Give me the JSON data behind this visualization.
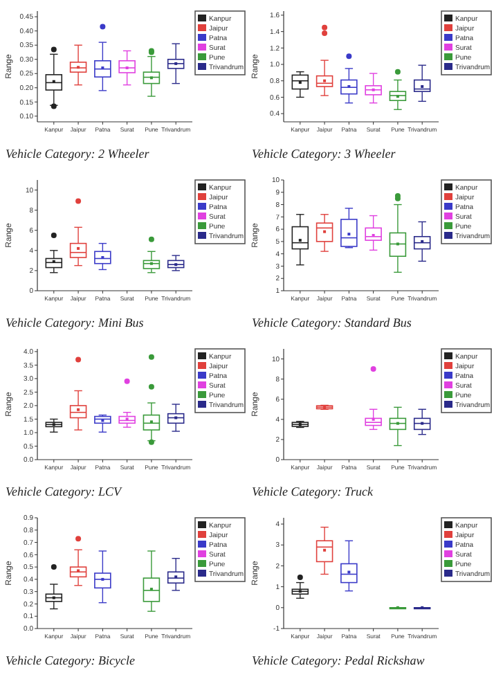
{
  "chart_data": [
    {
      "type": "box",
      "title": "Vehicle Category: 2 Wheeler",
      "ylabel": "Range",
      "categories": [
        "Kanpur",
        "Jaipur",
        "Patna",
        "Surat",
        "Pune",
        "Trivandrum"
      ],
      "ylim": [
        0.08,
        0.47
      ],
      "yticks": [
        {
          "value": 0.1,
          "label": "0.10"
        },
        {
          "value": 0.15,
          "label": "0.15"
        },
        {
          "value": 0.2,
          "label": "0.20"
        },
        {
          "value": 0.25,
          "label": "0.25"
        },
        {
          "value": 0.3,
          "label": "0.30"
        },
        {
          "value": 0.35,
          "label": "0.35"
        },
        {
          "value": 0.4,
          "label": "0.40"
        },
        {
          "value": 0.45,
          "label": "0.45"
        }
      ],
      "legend": "top right",
      "series": [
        {
          "name": "Kanpur",
          "color": "#222222",
          "boxes": [
            {
              "low": 0.138,
              "q1": 0.192,
              "median": 0.218,
              "q3": 0.246,
              "high": 0.318,
              "mean": 0.222,
              "outliers": [
                0.335,
                0.135
              ]
            },
            null,
            null,
            null,
            null,
            null
          ]
        },
        {
          "name": "Jaipur",
          "color": "#e0403c",
          "boxes": [
            null,
            {
              "low": 0.21,
              "q1": 0.255,
              "median": 0.27,
              "q3": 0.29,
              "high": 0.35,
              "mean": 0.272
            },
            null,
            null,
            null,
            null
          ]
        },
        {
          "name": "Patna",
          "color": "#3a3ac8",
          "boxes": [
            null,
            null,
            {
              "low": 0.19,
              "q1": 0.238,
              "median": 0.266,
              "q3": 0.295,
              "high": 0.36,
              "mean": 0.27,
              "outliers": [
                0.415
              ]
            },
            null,
            null,
            null
          ]
        },
        {
          "name": "Surat",
          "color": "#e040e0",
          "boxes": [
            null,
            null,
            null,
            {
              "low": 0.21,
              "q1": 0.253,
              "median": 0.27,
              "q3": 0.295,
              "high": 0.33,
              "mean": 0.27
            },
            null,
            null
          ]
        },
        {
          "name": "Pune",
          "color": "#3a9a3a",
          "boxes": [
            null,
            null,
            null,
            null,
            {
              "low": 0.17,
              "q1": 0.215,
              "median": 0.237,
              "q3": 0.255,
              "high": 0.31,
              "mean": 0.235,
              "outliers": [
                0.33,
                0.325
              ]
            },
            null
          ]
        },
        {
          "name": "Trivandrum",
          "color": "#2a2a8a",
          "boxes": [
            null,
            null,
            null,
            null,
            null,
            {
              "low": 0.215,
              "q1": 0.268,
              "median": 0.285,
              "q3": 0.3,
              "high": 0.355,
              "mean": 0.285
            }
          ]
        }
      ]
    },
    {
      "type": "box",
      "title": "Vehicle Category: 3 Wheeler",
      "ylabel": "Range",
      "categories": [
        "Kanpur",
        "Jaipur",
        "Patna",
        "Surat",
        "Pune",
        "Trivandrum"
      ],
      "ylim": [
        0.3,
        1.65
      ],
      "yticks": [
        0.4,
        0.6,
        0.8,
        {
          "value": 1,
          "label": "1.0"
        },
        1.2,
        1.4,
        1.6
      ],
      "legend": "top right",
      "series": [
        {
          "name": "Kanpur",
          "color": "#222222",
          "boxes": [
            {
              "low": 0.6,
              "q1": 0.7,
              "median": 0.8,
              "q3": 0.87,
              "high": 0.91,
              "mean": 0.78
            },
            null,
            null,
            null,
            null,
            null
          ]
        },
        {
          "name": "Jaipur",
          "color": "#e0403c",
          "boxes": [
            null,
            {
              "low": 0.62,
              "q1": 0.73,
              "median": 0.77,
              "q3": 0.86,
              "high": 1.05,
              "mean": 0.8,
              "outliers": [
                1.38,
                1.45
              ]
            },
            null,
            null,
            null,
            null
          ]
        },
        {
          "name": "Patna",
          "color": "#3a3ac8",
          "boxes": [
            null,
            null,
            {
              "low": 0.53,
              "q1": 0.64,
              "median": 0.72,
              "q3": 0.81,
              "high": 0.95,
              "mean": 0.73,
              "outliers": [
                1.1
              ]
            },
            null,
            null,
            null
          ]
        },
        {
          "name": "Surat",
          "color": "#e040e0",
          "boxes": [
            null,
            null,
            null,
            {
              "low": 0.53,
              "q1": 0.63,
              "median": 0.69,
              "q3": 0.74,
              "high": 0.89,
              "mean": 0.69
            },
            null,
            null
          ]
        },
        {
          "name": "Pune",
          "color": "#3a9a3a",
          "boxes": [
            null,
            null,
            null,
            null,
            {
              "low": 0.45,
              "q1": 0.56,
              "median": 0.62,
              "q3": 0.67,
              "high": 0.81,
              "mean": 0.61,
              "outliers": [
                0.91
              ]
            },
            null
          ]
        },
        {
          "name": "Trivandrum",
          "color": "#2a2a8a",
          "boxes": [
            null,
            null,
            null,
            null,
            null,
            {
              "low": 0.55,
              "q1": 0.67,
              "median": 0.7,
              "q3": 0.81,
              "high": 0.99,
              "mean": 0.73
            }
          ]
        }
      ]
    },
    {
      "type": "box",
      "title": "Vehicle Category: Mini Bus",
      "ylabel": "Range",
      "categories": [
        "Kanpur",
        "Jaipur",
        "Patna",
        "Surat",
        "Pune",
        "Trivandrum"
      ],
      "ylim": [
        0,
        11
      ],
      "yticks": [
        0,
        2,
        4,
        6,
        8,
        10
      ],
      "legend": "top right",
      "series": [
        {
          "name": "Kanpur",
          "color": "#222222",
          "boxes": [
            {
              "low": 1.8,
              "q1": 2.3,
              "median": 2.8,
              "q3": 3.2,
              "high": 4.0,
              "mean": 2.9,
              "outliers": [
                5.5
              ]
            },
            null,
            null,
            null,
            null,
            null
          ]
        },
        {
          "name": "Jaipur",
          "color": "#e0403c",
          "boxes": [
            null,
            {
              "low": 2.5,
              "q1": 3.3,
              "median": 3.8,
              "q3": 4.7,
              "high": 6.3,
              "mean": 4.2,
              "outliers": [
                8.9
              ]
            },
            null,
            null,
            null,
            null
          ]
        },
        {
          "name": "Patna",
          "color": "#3a3ac8",
          "boxes": [
            null,
            null,
            {
              "low": 2.1,
              "q1": 2.7,
              "median": 3.2,
              "q3": 3.9,
              "high": 4.7,
              "mean": 3.3
            },
            null,
            null,
            null
          ]
        },
        {
          "name": "Surat",
          "color": "#e040e0",
          "boxes": [
            null,
            null,
            null,
            null,
            null,
            null
          ]
        },
        {
          "name": "Pune",
          "color": "#3a9a3a",
          "boxes": [
            null,
            null,
            null,
            null,
            {
              "low": 1.8,
              "q1": 2.2,
              "median": 2.7,
              "q3": 3.0,
              "high": 3.9,
              "mean": 2.7,
              "outliers": [
                5.1
              ]
            },
            null
          ]
        },
        {
          "name": "Trivandrum",
          "color": "#2a2a8a",
          "boxes": [
            null,
            null,
            null,
            null,
            null,
            {
              "low": 2.0,
              "q1": 2.3,
              "median": 2.6,
              "q3": 3.0,
              "high": 3.5,
              "mean": 2.6
            }
          ]
        }
      ]
    },
    {
      "type": "box",
      "title": "Vehicle Category: Standard Bus",
      "ylabel": "Range",
      "categories": [
        "Kanpur",
        "Jaipur",
        "Patna",
        "Surat",
        "Pune",
        "Trivandrum"
      ],
      "ylim": [
        1,
        10
      ],
      "yticks": [
        1,
        2,
        3,
        4,
        5,
        6,
        7,
        8,
        9,
        10
      ],
      "legend": "top right",
      "series": [
        {
          "name": "Kanpur",
          "color": "#222222",
          "boxes": [
            {
              "low": 3.1,
              "q1": 4.4,
              "median": 4.9,
              "q3": 6.2,
              "high": 7.2,
              "mean": 5.1
            },
            null,
            null,
            null,
            null,
            null
          ]
        },
        {
          "name": "Jaipur",
          "color": "#e0403c",
          "boxes": [
            null,
            {
              "low": 4.2,
              "q1": 5.0,
              "median": 6.1,
              "q3": 6.5,
              "high": 7.2,
              "mean": 5.8
            },
            null,
            null,
            null,
            null
          ]
        },
        {
          "name": "Patna",
          "color": "#3a3ac8",
          "boxes": [
            null,
            null,
            {
              "low": 4.5,
              "q1": 4.6,
              "median": 5.3,
              "q3": 6.8,
              "high": 7.7,
              "mean": 5.6
            },
            null,
            null,
            null
          ]
        },
        {
          "name": "Surat",
          "color": "#e040e0",
          "boxes": [
            null,
            null,
            null,
            {
              "low": 4.3,
              "q1": 5.1,
              "median": 5.4,
              "q3": 6.1,
              "high": 7.1,
              "mean": 5.5
            },
            null,
            null
          ]
        },
        {
          "name": "Pune",
          "color": "#3a9a3a",
          "boxes": [
            null,
            null,
            null,
            null,
            {
              "low": 2.5,
              "q1": 3.8,
              "median": 4.8,
              "q3": 5.7,
              "high": 8.0,
              "mean": 4.8,
              "outliers": [
                8.5,
                8.7
              ]
            },
            null
          ]
        },
        {
          "name": "Trivandrum",
          "color": "#2a2a8a",
          "boxes": [
            null,
            null,
            null,
            null,
            null,
            {
              "low": 3.4,
              "q1": 4.4,
              "median": 4.9,
              "q3": 5.4,
              "high": 6.6,
              "mean": 5.0
            }
          ]
        }
      ]
    },
    {
      "type": "box",
      "title": "Vehicle Category: LCV",
      "ylabel": "Range",
      "categories": [
        "Kanpur",
        "Jaipur",
        "Patna",
        "Surat",
        "Pune",
        "Trivandrum"
      ],
      "ylim": [
        0,
        4.1
      ],
      "yticks": [
        {
          "value": 0,
          "label": "0.0"
        },
        {
          "value": 0.5,
          "label": "0.5"
        },
        {
          "value": 1,
          "label": "1.0"
        },
        {
          "value": 1.5,
          "label": "1.5"
        },
        {
          "value": 2,
          "label": "2.0"
        },
        {
          "value": 2.5,
          "label": "2.5"
        },
        {
          "value": 3,
          "label": "3.0"
        },
        {
          "value": 3.5,
          "label": "3.5"
        },
        {
          "value": 4,
          "label": "4.0"
        }
      ],
      "legend": "top right",
      "series": [
        {
          "name": "Kanpur",
          "color": "#222222",
          "boxes": [
            {
              "low": 1.02,
              "q1": 1.22,
              "median": 1.3,
              "q3": 1.38,
              "high": 1.5,
              "mean": 1.3
            },
            null,
            null,
            null,
            null,
            null
          ]
        },
        {
          "name": "Jaipur",
          "color": "#e0403c",
          "boxes": [
            null,
            {
              "low": 1.1,
              "q1": 1.55,
              "median": 1.75,
              "q3": 2.0,
              "high": 2.55,
              "mean": 1.85,
              "outliers": [
                3.7
              ]
            },
            null,
            null,
            null,
            null
          ]
        },
        {
          "name": "Patna",
          "color": "#3a3ac8",
          "boxes": [
            null,
            null,
            {
              "low": 1.02,
              "q1": 1.35,
              "median": 1.5,
              "q3": 1.6,
              "high": 1.65,
              "mean": 1.45
            },
            null,
            null,
            null
          ]
        },
        {
          "name": "Surat",
          "color": "#e040e0",
          "boxes": [
            null,
            null,
            null,
            {
              "low": 1.2,
              "q1": 1.35,
              "median": 1.45,
              "q3": 1.6,
              "high": 1.75,
              "mean": 1.5,
              "outliers": [
                2.9
              ]
            },
            null,
            null
          ]
        },
        {
          "name": "Pune",
          "color": "#3a9a3a",
          "boxes": [
            null,
            null,
            null,
            null,
            {
              "low": 0.7,
              "q1": 1.1,
              "median": 1.35,
              "q3": 1.65,
              "high": 2.1,
              "mean": 1.4,
              "outliers": [
                2.7,
                3.8,
                0.65
              ]
            },
            null
          ]
        },
        {
          "name": "Trivandrum",
          "color": "#2a2a8a",
          "boxes": [
            null,
            null,
            null,
            null,
            null,
            {
              "low": 1.05,
              "q1": 1.35,
              "median": 1.55,
              "q3": 1.7,
              "high": 2.05,
              "mean": 1.55
            }
          ]
        }
      ]
    },
    {
      "type": "box",
      "title": "Vehicle Category: Truck",
      "ylabel": "Range",
      "categories": [
        "Kanpur",
        "Jaipur",
        "Patna",
        "Surat",
        "Pune",
        "Trivandrum"
      ],
      "ylim": [
        0,
        11
      ],
      "yticks": [
        0,
        2,
        4,
        6,
        8,
        10
      ],
      "legend": "top right",
      "series": [
        {
          "name": "Kanpur",
          "color": "#222222",
          "boxes": [
            {
              "low": 3.2,
              "q1": 3.3,
              "median": 3.5,
              "q3": 3.7,
              "high": 3.8,
              "mean": 3.5
            },
            null,
            null,
            null,
            null,
            null
          ]
        },
        {
          "name": "Jaipur",
          "color": "#e0403c",
          "boxes": [
            null,
            {
              "low": 5.0,
              "q1": 5.05,
              "median": 5.2,
              "q3": 5.35,
              "high": 5.4,
              "mean": 5.2
            },
            null,
            null,
            null,
            null
          ]
        },
        {
          "name": "Patna",
          "color": "#3a3ac8",
          "boxes": [
            null,
            null,
            null,
            null,
            null,
            null
          ]
        },
        {
          "name": "Surat",
          "color": "#e040e0",
          "boxes": [
            null,
            null,
            null,
            {
              "low": 3.0,
              "q1": 3.4,
              "median": 3.7,
              "q3": 4.1,
              "high": 5.0,
              "mean": 4.0,
              "outliers": [
                9.0
              ]
            },
            null,
            null
          ]
        },
        {
          "name": "Pune",
          "color": "#3a9a3a",
          "boxes": [
            null,
            null,
            null,
            null,
            {
              "low": 1.4,
              "q1": 3.0,
              "median": 3.6,
              "q3": 4.1,
              "high": 5.2,
              "mean": 3.6
            },
            null
          ]
        },
        {
          "name": "Trivandrum",
          "color": "#2a2a8a",
          "boxes": [
            null,
            null,
            null,
            null,
            null,
            {
              "low": 2.5,
              "q1": 3.0,
              "median": 3.6,
              "q3": 4.1,
              "high": 5.0,
              "mean": 3.6
            }
          ]
        }
      ]
    },
    {
      "type": "box",
      "title": "Vehicle Category: Bicycle",
      "ylabel": "Range",
      "categories": [
        "Kanpur",
        "Jaipur",
        "Patna",
        "Surat",
        "Pune",
        "Trivandrum"
      ],
      "ylim": [
        0,
        0.9
      ],
      "yticks": [
        {
          "value": 0,
          "label": "0.0"
        },
        0.1,
        0.2,
        0.3,
        0.4,
        0.5,
        0.6,
        0.7,
        0.8,
        0.9
      ],
      "legend": "top right",
      "series": [
        {
          "name": "Kanpur",
          "color": "#222222",
          "boxes": [
            {
              "low": 0.16,
              "q1": 0.22,
              "median": 0.25,
              "q3": 0.28,
              "high": 0.36,
              "mean": 0.25,
              "outliers": [
                0.5
              ]
            },
            null,
            null,
            null,
            null,
            null
          ]
        },
        {
          "name": "Jaipur",
          "color": "#e0403c",
          "boxes": [
            null,
            {
              "low": 0.35,
              "q1": 0.42,
              "median": 0.46,
              "q3": 0.5,
              "high": 0.64,
              "mean": 0.47,
              "outliers": [
                0.73
              ]
            },
            null,
            null,
            null,
            null
          ]
        },
        {
          "name": "Patna",
          "color": "#3a3ac8",
          "boxes": [
            null,
            null,
            {
              "low": 0.21,
              "q1": 0.33,
              "median": 0.4,
              "q3": 0.45,
              "high": 0.63,
              "mean": 0.4
            },
            null,
            null,
            null
          ]
        },
        {
          "name": "Surat",
          "color": "#e040e0",
          "boxes": [
            null,
            null,
            null,
            null,
            null,
            null
          ]
        },
        {
          "name": "Pune",
          "color": "#3a9a3a",
          "boxes": [
            null,
            null,
            null,
            null,
            {
              "low": 0.14,
              "q1": 0.22,
              "median": 0.31,
              "q3": 0.41,
              "high": 0.63,
              "mean": 0.32
            },
            null
          ]
        },
        {
          "name": "Trivandrum",
          "color": "#2a2a8a",
          "boxes": [
            null,
            null,
            null,
            null,
            null,
            {
              "low": 0.31,
              "q1": 0.37,
              "median": 0.41,
              "q3": 0.46,
              "high": 0.57,
              "mean": 0.42
            }
          ]
        }
      ]
    },
    {
      "type": "box",
      "title": "Vehicle Category: Pedal Rickshaw",
      "ylabel": "Range",
      "categories": [
        "Kanpur",
        "Jaipur",
        "Patna",
        "Surat",
        "Pune",
        "Trivandrum"
      ],
      "ylim": [
        -1,
        4.3
      ],
      "yticks": [
        -1,
        0,
        1,
        2,
        3,
        4
      ],
      "legend": "top right",
      "series": [
        {
          "name": "Kanpur",
          "color": "#222222",
          "boxes": [
            {
              "low": 0.45,
              "q1": 0.65,
              "median": 0.78,
              "q3": 0.88,
              "high": 1.2,
              "mean": 0.78,
              "outliers": [
                1.45
              ]
            },
            null,
            null,
            null,
            null,
            null
          ]
        },
        {
          "name": "Jaipur",
          "color": "#e0403c",
          "boxes": [
            null,
            {
              "low": 1.6,
              "q1": 2.2,
              "median": 2.9,
              "q3": 3.2,
              "high": 3.85,
              "mean": 2.75
            },
            null,
            null,
            null,
            null
          ]
        },
        {
          "name": "Patna",
          "color": "#3a3ac8",
          "boxes": [
            null,
            null,
            {
              "low": 0.8,
              "q1": 1.2,
              "median": 1.6,
              "q3": 2.1,
              "high": 3.2,
              "mean": 1.7
            },
            null,
            null,
            null
          ]
        },
        {
          "name": "Surat",
          "color": "#e040e0",
          "boxes": [
            null,
            null,
            null,
            null,
            null,
            null
          ]
        },
        {
          "name": "Pune",
          "color": "#3a9a3a",
          "boxes": [
            null,
            null,
            null,
            null,
            {
              "low": 0,
              "q1": 0,
              "median": 0,
              "q3": 0,
              "high": 0,
              "mean": 0
            },
            null
          ]
        },
        {
          "name": "Trivandrum",
          "color": "#2a2a8a",
          "boxes": [
            null,
            null,
            null,
            null,
            null,
            {
              "low": 0,
              "q1": 0,
              "median": 0,
              "q3": 0,
              "high": 0,
              "mean": 0
            }
          ]
        }
      ]
    }
  ]
}
